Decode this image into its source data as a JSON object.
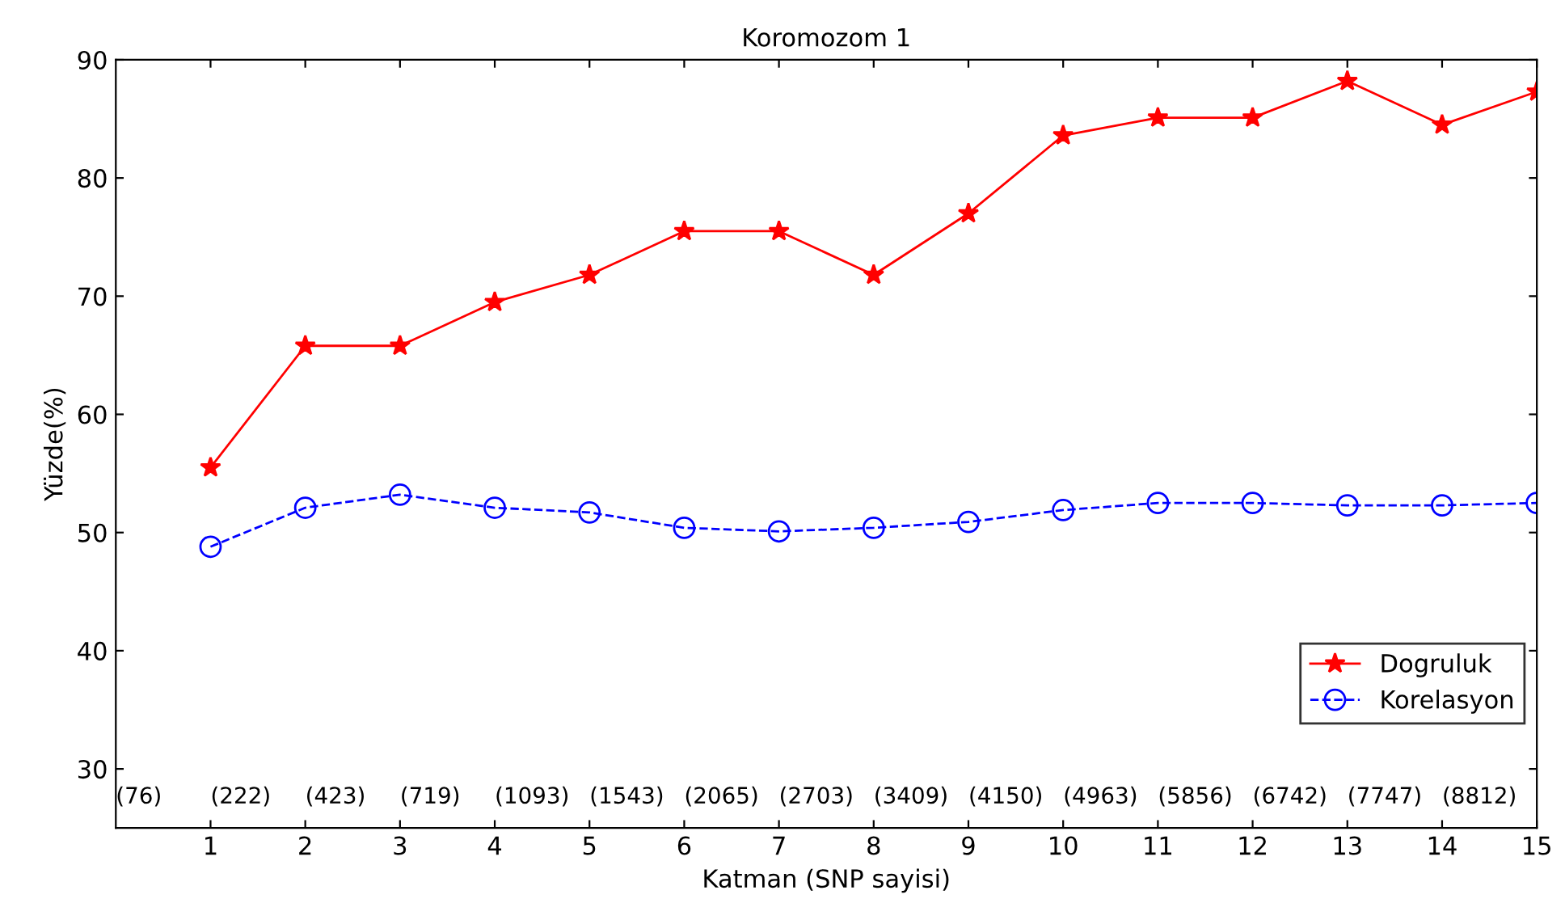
{
  "chart_data": {
    "type": "line",
    "title": "Koromozom 1",
    "xlabel": "Katman (SNP sayisi)",
    "ylabel": "Yüzde(%)",
    "x": [
      1,
      2,
      3,
      4,
      5,
      6,
      7,
      8,
      9,
      10,
      11,
      12,
      13,
      14,
      15
    ],
    "series": [
      {
        "name": "Dogruluk",
        "color": "#ff0000",
        "marker": "star",
        "line_style": "solid",
        "values": [
          55.5,
          65.8,
          65.8,
          69.5,
          71.8,
          75.5,
          75.5,
          71.8,
          77,
          83.6,
          85.1,
          85.1,
          88.2,
          84.5,
          87.3
        ]
      },
      {
        "name": "Korelasyon",
        "color": "#0000ff",
        "marker": "circle",
        "line_style": "dashed",
        "values": [
          48.8,
          52.1,
          53.2,
          52.1,
          51.7,
          50.4,
          50.1,
          50.4,
          50.9,
          51.9,
          52.5,
          52.5,
          52.3,
          52.3,
          52.5
        ]
      }
    ],
    "xlim": [
      0,
      15
    ],
    "xticks": [
      1,
      2,
      3,
      4,
      5,
      6,
      7,
      8,
      9,
      10,
      11,
      12,
      13,
      14,
      15
    ],
    "ylim": [
      25,
      90
    ],
    "yticks": [
      30,
      40,
      50,
      60,
      70,
      80,
      90
    ],
    "grid": false,
    "legend": "bottom right",
    "annotations": [
      "(76)",
      "(222)",
      "(423)",
      "(719)",
      "(1093)",
      "(1543)",
      "(2065)",
      "(2703)",
      "(3409)",
      "(4150)",
      "(4963)",
      "(5856)",
      "(6742)",
      "(7747)",
      "(8812)"
    ]
  }
}
